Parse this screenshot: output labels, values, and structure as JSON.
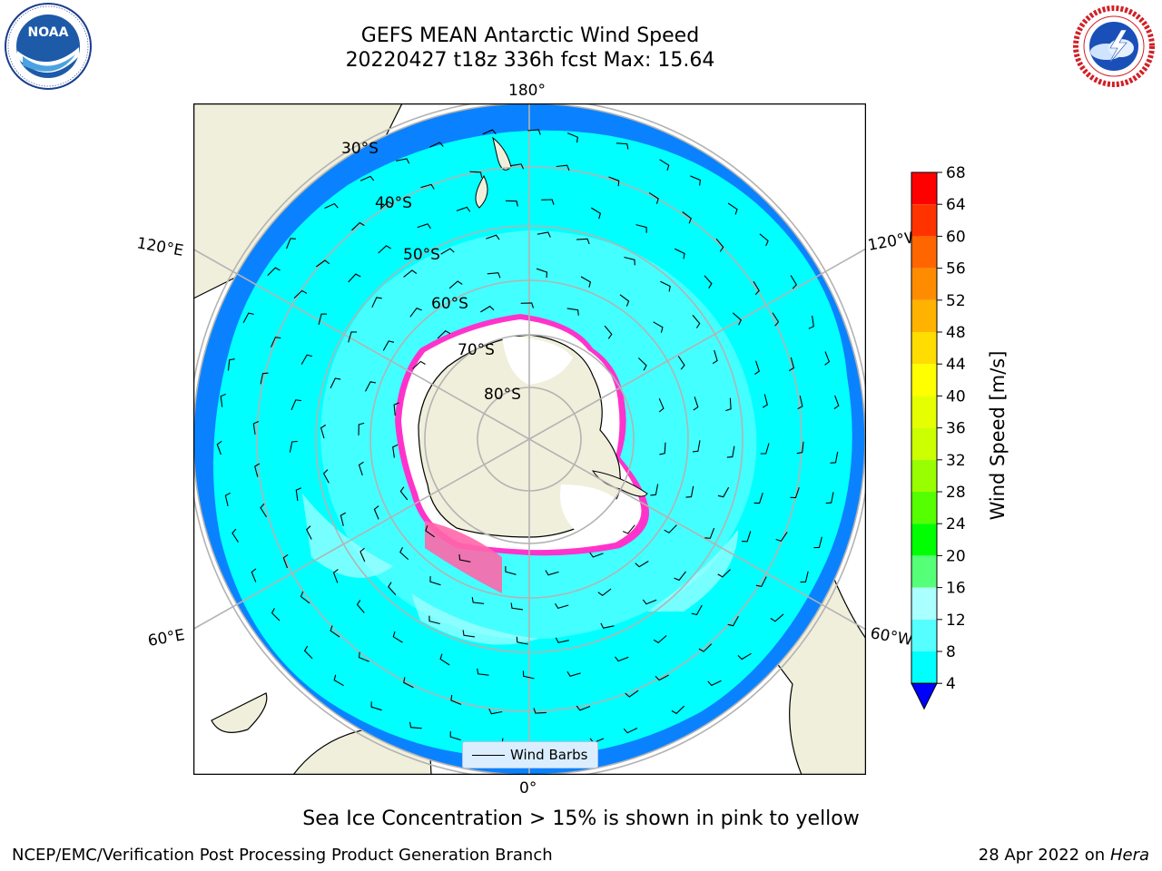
{
  "header": {
    "title_line1": "GEFS MEAN Antarctic Wind Speed",
    "title_line2": "20220427 t18z 336h fcst   Max: 15.64"
  },
  "logos": {
    "left": {
      "icon": "noaa-logo",
      "text": "NOAA",
      "ring_text": "NATIONAL OCEANIC AND ATMOSPHERIC ADMINISTRATION · U.S. DEPARTMENT OF COMMERCE"
    },
    "right": {
      "icon": "nws-logo",
      "ring_text": "NATIONAL WEATHER SERVICE"
    }
  },
  "map": {
    "projection": "south-polar-stereographic",
    "longitude_labels": {
      "top": "180°",
      "bottom": "0°",
      "upper_left": "120°E",
      "upper_right": "120°W",
      "lower_left": "60°E",
      "lower_right": "60°W"
    },
    "latitude_labels": [
      "30°S",
      "40°S",
      "50°S",
      "60°S",
      "70°S",
      "80°S"
    ],
    "legend_label": "Wind Barbs",
    "colors": {
      "ocean_deep": "#0a82ff",
      "wind_8_12": "#00ffff",
      "wind_12_16": "#55ffff",
      "wind_16_20": "#aaffff",
      "land": "#efefdb",
      "ice_edge": "#ff33cc",
      "ice_zone": "#ffffff",
      "grid": "#b3b3b3"
    }
  },
  "colorbar": {
    "label": "Wind Speed [m/s]",
    "ticks": [
      "68",
      "64",
      "60",
      "56",
      "52",
      "48",
      "44",
      "40",
      "36",
      "32",
      "28",
      "24",
      "20",
      "16",
      "12",
      "8",
      "4"
    ],
    "colors_top_to_bottom": [
      "#ff0000",
      "#ff3300",
      "#ff6600",
      "#ff8c00",
      "#ffb300",
      "#ffdd00",
      "#ffff00",
      "#e6ff00",
      "#ccff00",
      "#99ff00",
      "#55ff00",
      "#00ff00",
      "#55ff77",
      "#aaffff",
      "#55ffff",
      "#00ffff",
      "#0a82ff"
    ],
    "extend_color": "#0000ff"
  },
  "footer": {
    "note": "Sea Ice Concentration > 15% is shown in pink to yellow",
    "credit_left": "NCEP/EMC/Verification Post Processing Product Generation Branch",
    "credit_right_prefix": "28 Apr 2022 on ",
    "credit_right_machine": "Hera"
  }
}
